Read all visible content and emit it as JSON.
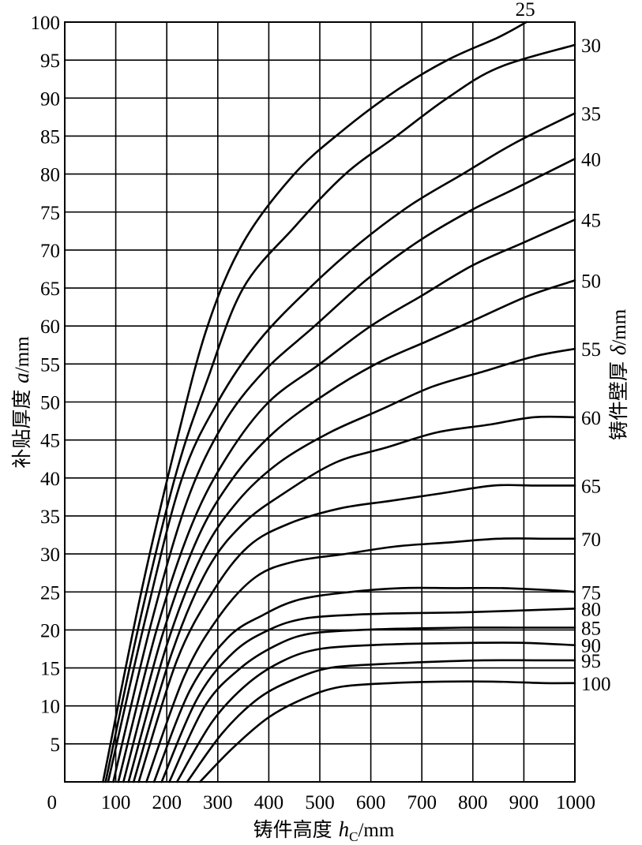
{
  "chart_data": {
    "type": "line",
    "xlabel_prefix": "铸件高度 ",
    "xlabel_var": "h",
    "xlabel_sub": "C",
    "xlabel_unit": "/mm",
    "ylabel_prefix": "补贴厚度 ",
    "ylabel_var": "a",
    "ylabel_unit": "/mm",
    "y2label_prefix": "铸件壁厚 ",
    "y2label_var": "δ",
    "y2label_unit": "/mm",
    "xlim": [
      0,
      1000
    ],
    "ylim": [
      0,
      100
    ],
    "x_ticks": [
      0,
      100,
      200,
      300,
      400,
      500,
      600,
      700,
      800,
      900,
      1000
    ],
    "y_ticks": [
      5,
      10,
      15,
      20,
      25,
      30,
      35,
      40,
      45,
      50,
      55,
      60,
      65,
      70,
      75,
      80,
      85,
      90,
      95,
      100
    ],
    "grid": true,
    "series": [
      {
        "name": "25",
        "points": [
          [
            75,
            0
          ],
          [
            150,
            25
          ],
          [
            220,
            45
          ],
          [
            280,
            60
          ],
          [
            350,
            71
          ],
          [
            450,
            80
          ],
          [
            550,
            86
          ],
          [
            650,
            91
          ],
          [
            750,
            95
          ],
          [
            850,
            98
          ],
          [
            905,
            100
          ]
        ]
      },
      {
        "name": "30",
        "points": [
          [
            80,
            0
          ],
          [
            150,
            22
          ],
          [
            220,
            41
          ],
          [
            280,
            53
          ],
          [
            350,
            65
          ],
          [
            450,
            73
          ],
          [
            550,
            80
          ],
          [
            650,
            85
          ],
          [
            750,
            90
          ],
          [
            850,
            94
          ],
          [
            1000,
            97
          ]
        ]
      },
      {
        "name": "35",
        "points": [
          [
            85,
            0
          ],
          [
            160,
            22
          ],
          [
            230,
            40
          ],
          [
            300,
            50
          ],
          [
            380,
            58
          ],
          [
            480,
            65
          ],
          [
            580,
            71
          ],
          [
            680,
            76
          ],
          [
            780,
            80
          ],
          [
            880,
            84
          ],
          [
            1000,
            88
          ]
        ]
      },
      {
        "name": "40",
        "points": [
          [
            95,
            0
          ],
          [
            170,
            21
          ],
          [
            240,
            37
          ],
          [
            310,
            47
          ],
          [
            390,
            54
          ],
          [
            490,
            60
          ],
          [
            590,
            66
          ],
          [
            690,
            71
          ],
          [
            790,
            75
          ],
          [
            880,
            78
          ],
          [
            1000,
            82
          ]
        ]
      },
      {
        "name": "45",
        "points": [
          [
            105,
            0
          ],
          [
            180,
            20
          ],
          [
            250,
            34
          ],
          [
            320,
            43
          ],
          [
            400,
            50
          ],
          [
            500,
            55
          ],
          [
            600,
            60
          ],
          [
            700,
            64
          ],
          [
            800,
            68
          ],
          [
            900,
            71
          ],
          [
            1000,
            74
          ]
        ]
      },
      {
        "name": "50",
        "points": [
          [
            115,
            0
          ],
          [
            190,
            19
          ],
          [
            260,
            32
          ],
          [
            330,
            40
          ],
          [
            410,
            46
          ],
          [
            510,
            51
          ],
          [
            610,
            55
          ],
          [
            710,
            58
          ],
          [
            810,
            61
          ],
          [
            910,
            64
          ],
          [
            1000,
            66
          ]
        ]
      },
      {
        "name": "55",
        "points": [
          [
            125,
            0
          ],
          [
            200,
            18
          ],
          [
            270,
            30
          ],
          [
            340,
            37
          ],
          [
            420,
            42
          ],
          [
            520,
            46
          ],
          [
            620,
            49
          ],
          [
            720,
            52
          ],
          [
            820,
            54
          ],
          [
            920,
            56
          ],
          [
            1000,
            57
          ]
        ]
      },
      {
        "name": "60",
        "points": [
          [
            135,
            0
          ],
          [
            210,
            17
          ],
          [
            280,
            28
          ],
          [
            350,
            34
          ],
          [
            430,
            38
          ],
          [
            530,
            42
          ],
          [
            630,
            44
          ],
          [
            730,
            46
          ],
          [
            830,
            47
          ],
          [
            920,
            48
          ],
          [
            1000,
            48
          ]
        ]
      },
      {
        "name": "65",
        "points": [
          [
            145,
            0
          ],
          [
            220,
            16
          ],
          [
            290,
            25
          ],
          [
            360,
            31
          ],
          [
            440,
            34
          ],
          [
            540,
            36
          ],
          [
            640,
            37
          ],
          [
            740,
            38
          ],
          [
            840,
            39
          ],
          [
            920,
            39
          ],
          [
            1000,
            39
          ]
        ]
      },
      {
        "name": "70",
        "points": [
          [
            160,
            0
          ],
          [
            235,
            14
          ],
          [
            305,
            22
          ],
          [
            375,
            27
          ],
          [
            450,
            29
          ],
          [
            550,
            30
          ],
          [
            650,
            31
          ],
          [
            750,
            31.5
          ],
          [
            850,
            32
          ],
          [
            950,
            32
          ],
          [
            1000,
            32
          ]
        ]
      },
      {
        "name": "75",
        "points": [
          [
            175,
            0
          ],
          [
            245,
            12
          ],
          [
            320,
            19
          ],
          [
            390,
            22
          ],
          [
            460,
            24
          ],
          [
            560,
            25
          ],
          [
            660,
            25.5
          ],
          [
            760,
            25.5
          ],
          [
            860,
            25.5
          ],
          [
            960,
            25.2
          ],
          [
            1000,
            25
          ]
        ]
      },
      {
        "name": "80",
        "points": [
          [
            190,
            0
          ],
          [
            260,
            11
          ],
          [
            330,
            17
          ],
          [
            400,
            20
          ],
          [
            470,
            21.5
          ],
          [
            570,
            22
          ],
          [
            670,
            22.2
          ],
          [
            770,
            22.3
          ],
          [
            870,
            22.5
          ],
          [
            1000,
            22.8
          ]
        ]
      },
      {
        "name": "85",
        "points": [
          [
            205,
            0
          ],
          [
            275,
            10
          ],
          [
            345,
            15
          ],
          [
            415,
            18
          ],
          [
            480,
            19.5
          ],
          [
            580,
            20
          ],
          [
            680,
            20.2
          ],
          [
            780,
            20.3
          ],
          [
            880,
            20.3
          ],
          [
            1000,
            20.3
          ]
        ]
      },
      {
        "name": "90",
        "points": [
          [
            220,
            0
          ],
          [
            290,
            8
          ],
          [
            360,
            13
          ],
          [
            430,
            16
          ],
          [
            500,
            17.5
          ],
          [
            600,
            18
          ],
          [
            700,
            18.2
          ],
          [
            800,
            18.3
          ],
          [
            900,
            18.3
          ],
          [
            1000,
            18
          ]
        ]
      },
      {
        "name": "95",
        "points": [
          [
            240,
            0
          ],
          [
            310,
            6.5
          ],
          [
            380,
            11
          ],
          [
            450,
            13.5
          ],
          [
            520,
            15
          ],
          [
            620,
            15.5
          ],
          [
            720,
            15.8
          ],
          [
            820,
            16
          ],
          [
            920,
            16
          ],
          [
            1000,
            16
          ]
        ]
      },
      {
        "name": "100",
        "points": [
          [
            265,
            0
          ],
          [
            330,
            4.5
          ],
          [
            400,
            8.5
          ],
          [
            470,
            11
          ],
          [
            540,
            12.5
          ],
          [
            640,
            13
          ],
          [
            740,
            13.2
          ],
          [
            840,
            13.2
          ],
          [
            940,
            13
          ],
          [
            1000,
            13
          ]
        ]
      }
    ],
    "curve_labels": [
      "25",
      "30",
      "35",
      "40",
      "45",
      "50",
      "55",
      "60",
      "65",
      "70",
      "75",
      "80",
      "85",
      "90",
      "95",
      "100"
    ]
  }
}
